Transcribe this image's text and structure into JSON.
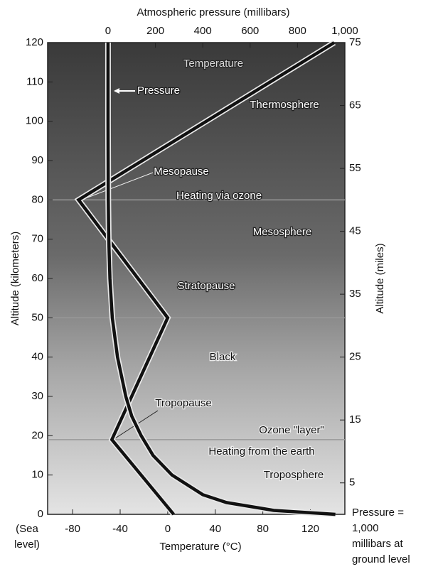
{
  "chart_data": {
    "type": "line",
    "title": "Atmospheric pressure (millibars)",
    "ylabel": "Altitude (kilometers)",
    "y2label": "Altitude (miles)",
    "xlabel": "Temperature (°C)",
    "xlim": [
      -101,
      149
    ],
    "xticks": [
      -80,
      -40,
      0,
      40,
      80,
      120
    ],
    "x2lim": [
      -255,
      1000
    ],
    "x2ticks": [
      0,
      200,
      400,
      600,
      800,
      {
        "value": 1000,
        "label": "1,000"
      }
    ],
    "ylim": [
      0,
      120
    ],
    "yticks": [
      0,
      10,
      20,
      30,
      40,
      50,
      60,
      70,
      80,
      90,
      100,
      110,
      120
    ],
    "y2lim": [
      0,
      75
    ],
    "y2ticks": [
      5,
      15,
      25,
      35,
      45,
      55,
      65,
      75
    ],
    "layer_boundaries": [
      19,
      50,
      80
    ],
    "series": [
      {
        "name": "Temperature",
        "color": "#111111",
        "x": [
          5,
          -47,
          0,
          -75,
          140
        ],
        "values": [
          0,
          19,
          50,
          80,
          120
        ]
      },
      {
        "name": "Pressure",
        "color": "#111111",
        "axis": "x2",
        "x": [
          960,
          700,
          500,
          400,
          270,
          190,
          140,
          100,
          75,
          40,
          18,
          8,
          3,
          1,
          0,
          0
        ],
        "values": [
          0,
          1,
          3,
          5,
          10,
          15,
          20,
          25,
          30,
          40,
          50,
          60,
          70,
          80,
          100,
          120
        ]
      }
    ],
    "annotations": [
      "Thermosphere",
      "Mesopause",
      "Heating via ozone",
      "Mesosphere",
      "Stratopause",
      "Black",
      "Tropopause",
      "Ozone \"layer\"",
      "Heating from the earth",
      "Troposphere"
    ],
    "sea_level_note": [
      "(Sea",
      "level)"
    ],
    "ground_note": [
      "Pressure =",
      "1,000",
      "millibars at",
      "ground level"
    ]
  }
}
